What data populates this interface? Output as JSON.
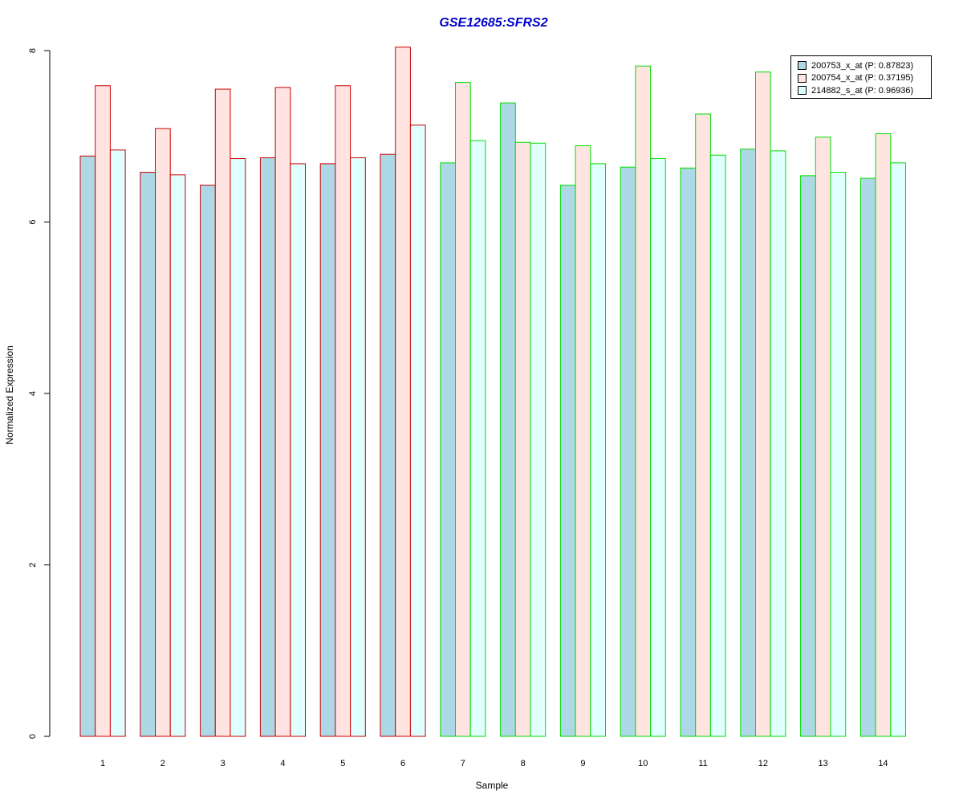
{
  "chart_data": {
    "type": "bar",
    "title": "GSE12685:SFRS2",
    "xlabel": "Sample",
    "ylabel": "Normalized Expression",
    "ylim": [
      0,
      8
    ],
    "yticks": [
      "0",
      "2",
      "4",
      "6",
      "8"
    ],
    "categories": [
      "1",
      "2",
      "3",
      "4",
      "5",
      "6",
      "7",
      "8",
      "9",
      "10",
      "11",
      "12",
      "13",
      "14"
    ],
    "series": [
      {
        "name": "200753_x_at (P: 0.87823)",
        "fill": "#add8e6",
        "values": [
          6.77,
          6.58,
          6.43,
          6.75,
          6.68,
          6.79,
          6.69,
          7.39,
          6.43,
          6.64,
          6.63,
          6.85,
          6.54,
          6.51
        ]
      },
      {
        "name": "200754_x_at (P: 0.37195)",
        "fill": "#ffe4e1",
        "values": [
          7.59,
          7.09,
          7.55,
          7.57,
          7.59,
          8.04,
          7.63,
          6.93,
          6.89,
          7.82,
          7.26,
          7.75,
          6.99,
          7.03
        ]
      },
      {
        "name": "214882_s_at (P: 0.96936)",
        "fill": "#e0ffff",
        "values": [
          6.84,
          6.55,
          6.74,
          6.68,
          6.75,
          7.13,
          6.95,
          6.92,
          6.68,
          6.74,
          6.78,
          6.83,
          6.58,
          6.69
        ]
      }
    ],
    "group_border_colors": [
      "#cc0000",
      "#cc0000",
      "#cc0000",
      "#cc0000",
      "#cc0000",
      "#cc0000",
      "#00dd00",
      "#00dd00",
      "#00dd00",
      "#00dd00",
      "#00dd00",
      "#00dd00",
      "#00dd00",
      "#00dd00"
    ],
    "legend_position": "top-right",
    "grid": false
  }
}
